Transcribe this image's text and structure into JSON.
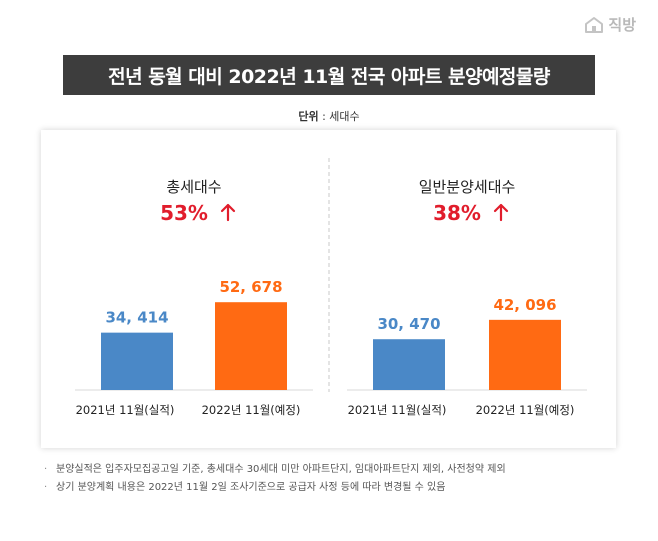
{
  "brand": {
    "name": "직방",
    "icon": "house-logo-icon"
  },
  "title": "전년 동월 대비 2022년 11월 전국 아파트 분양예정물량",
  "unit": {
    "label": "단위",
    "value": "세대수"
  },
  "colors": {
    "actual": "#4a88c7",
    "planned": "#ff6a13",
    "highlight": "#e11d2c"
  },
  "chart_data": [
    {
      "type": "bar",
      "title": "총세대수",
      "change": {
        "value": "53%",
        "direction": "up"
      },
      "categories": [
        "2021년 11월(실적)",
        "2022년 11월(예정)"
      ],
      "values": [
        34414,
        52678
      ],
      "data_labels": [
        "34, 414",
        "52, 678"
      ],
      "ylim": [
        0,
        90000
      ],
      "grid": false,
      "legend": "none"
    },
    {
      "type": "bar",
      "title": "일반분양세대수",
      "change": {
        "value": "38%",
        "direction": "up"
      },
      "categories": [
        "2021년 11월(실적)",
        "2022년 11월(예정)"
      ],
      "values": [
        30470,
        42096
      ],
      "data_labels": [
        "30, 470",
        "42, 096"
      ],
      "ylim": [
        0,
        90000
      ],
      "grid": false,
      "legend": "none"
    }
  ],
  "notes": [
    "분양실적은 입주자모집공고일 기준, 총세대수 30세대 미만 아파트단지, 임대아파트단지 제외, 사전청약 제외",
    "상기 분양계획 내용은 2022년 11월 2일 조사기준으로 공급자 사정 등에 따라 변경될 수 있음"
  ]
}
